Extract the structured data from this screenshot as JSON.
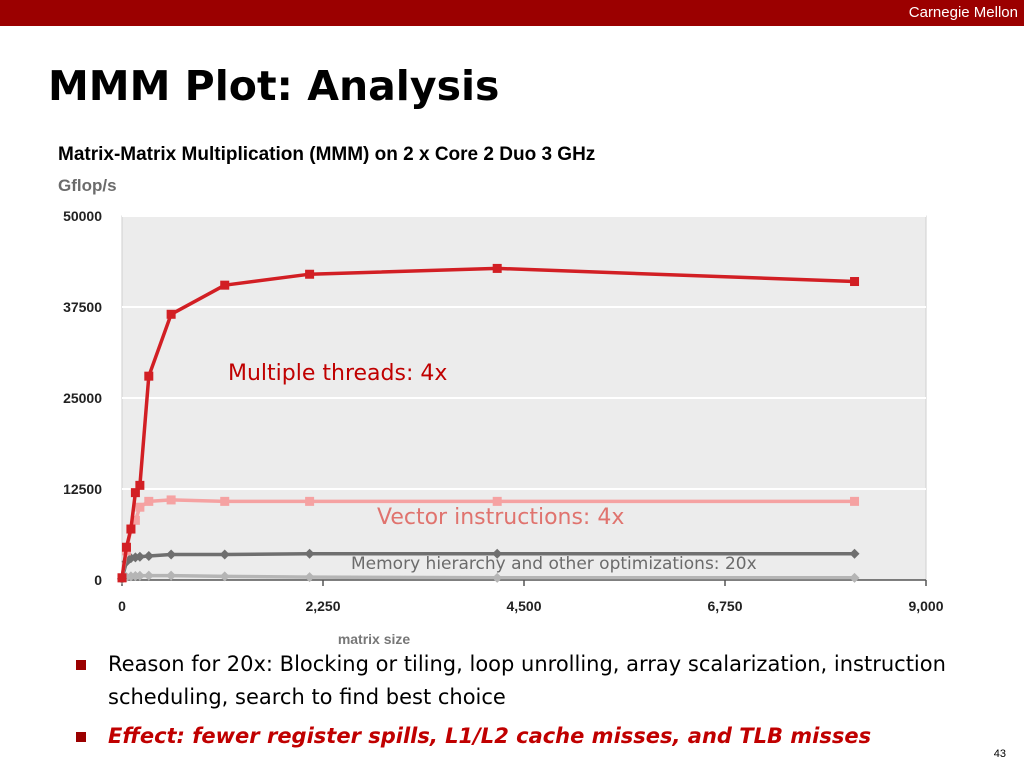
{
  "header": {
    "brand": "Carnegie Mellon"
  },
  "slide": {
    "title": "MMM Plot: Analysis",
    "page_number": "43",
    "bullets": [
      "Reason for 20x: Blocking or tiling, loop unrolling, array scalarization, instruction scheduling, search to find best choice",
      "Effect: fewer register spills,  L1/L2 cache misses, and TLB misses"
    ]
  },
  "chart_data": {
    "type": "line",
    "title": "Matrix-Matrix Multiplication (MMM) on 2 x Core 2 Duo 3 GHz",
    "ylabel": "Gflop/s",
    "xlabel": "matrix size",
    "xlim": [
      0,
      9000
    ],
    "ylim": [
      0,
      50000
    ],
    "x_ticks": [
      "0",
      "2,250",
      "4,500",
      "6,750",
      "9,000"
    ],
    "y_ticks": [
      "0",
      "12500",
      "25000",
      "37500",
      "50000"
    ],
    "grid": true,
    "series": [
      {
        "color": "#d21f24",
        "x": [
          0,
          50,
          100,
          150,
          200,
          300,
          550,
          1150,
          2100,
          4200,
          8200
        ],
        "y": [
          300,
          4500,
          7000,
          12000,
          13000,
          28000,
          36500,
          40500,
          42000,
          42800,
          41000
        ]
      },
      {
        "color": "#f5a2a2",
        "x": [
          0,
          50,
          100,
          150,
          200,
          300,
          550,
          1150,
          2100,
          4200,
          8200
        ],
        "y": [
          300,
          4000,
          7000,
          8200,
          10000,
          10800,
          11000,
          10800,
          10800,
          10800,
          10800
        ]
      },
      {
        "color": "#6f6f6f",
        "x": [
          0,
          50,
          100,
          150,
          200,
          300,
          550,
          1150,
          2100,
          4200,
          8200
        ],
        "y": [
          200,
          2500,
          3000,
          3100,
          3200,
          3300,
          3500,
          3500,
          3600,
          3600,
          3600
        ]
      },
      {
        "color": "#b5b5b5",
        "x": [
          0,
          50,
          100,
          150,
          200,
          300,
          550,
          1150,
          2100,
          4200,
          8200
        ],
        "y": [
          100,
          400,
          500,
          550,
          580,
          600,
          600,
          500,
          400,
          300,
          300
        ]
      }
    ],
    "annotations": [
      {
        "text": "Multiple threads: 4x",
        "color": "#c00000"
      },
      {
        "text": "Vector instructions: 4x",
        "color": "#e0736e"
      },
      {
        "text": "Memory hierarchy and other optimizations: 20x",
        "color": "#6b6b6b"
      }
    ]
  }
}
